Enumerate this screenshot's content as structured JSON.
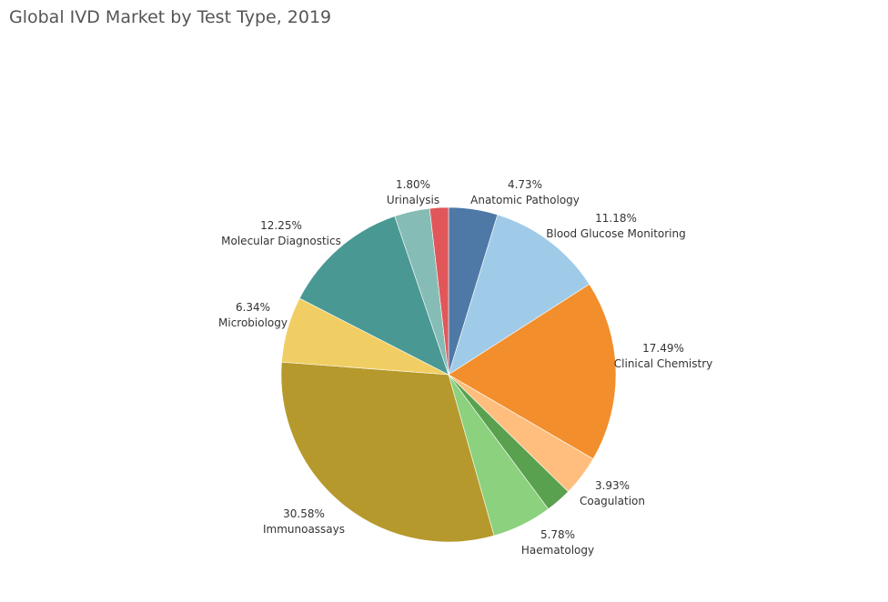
{
  "chart_data": {
    "type": "pie",
    "title": "Global IVD Market by Test Type, 2019",
    "slices": [
      {
        "label": "Anatomic Pathology",
        "value": 4.73,
        "display": "4.73%",
        "color": "#4E79A7"
      },
      {
        "label": "Blood Glucose Monitoring",
        "value": 11.18,
        "display": "11.18%",
        "color": "#A0CBE8"
      },
      {
        "label": "Clinical Chemistry",
        "value": 17.49,
        "display": "17.49%",
        "color": "#F28E2B"
      },
      {
        "label": "Coagulation",
        "value": 3.93,
        "display": "3.93%",
        "color": "#FFBE7D"
      },
      {
        "label": "",
        "value": 2.51,
        "display": "",
        "color": "#59A14F"
      },
      {
        "label": "Haematology",
        "value": 5.78,
        "display": "5.78%",
        "color": "#8CD17D"
      },
      {
        "label": "Immunoassays",
        "value": 30.58,
        "display": "30.58%",
        "color": "#B6992D"
      },
      {
        "label": "Microbiology",
        "value": 6.34,
        "display": "6.34%",
        "color": "#F1CE63"
      },
      {
        "label": "Molecular Diagnostics",
        "value": 12.25,
        "display": "12.25%",
        "color": "#499894"
      },
      {
        "label": "",
        "value": 3.41,
        "display": "",
        "color": "#86BCB6"
      },
      {
        "label": "Urinalysis",
        "value": 1.8,
        "display": "1.80%",
        "color": "#E15759"
      }
    ]
  }
}
